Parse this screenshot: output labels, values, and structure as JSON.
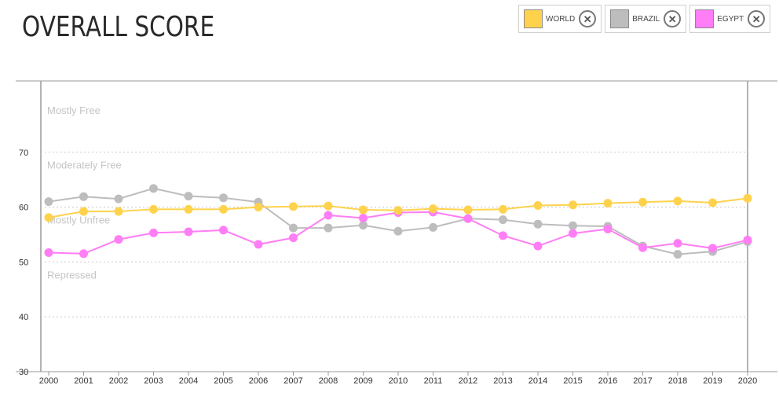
{
  "title": "OVERALL SCORE",
  "legend": [
    {
      "label": "WORLD",
      "color": "#ffd24d",
      "remove_icon": "close-circle-icon"
    },
    {
      "label": "BRAZIL",
      "color": "#bdbdbd",
      "remove_icon": "close-circle-icon"
    },
    {
      "label": "EGYPT",
      "color": "#ff7df5",
      "remove_icon": "close-circle-icon"
    }
  ],
  "chart_data": {
    "type": "line",
    "x": [
      "2000",
      "2001",
      "2002",
      "2003",
      "2004",
      "2005",
      "2006",
      "2007",
      "2008",
      "2009",
      "2010",
      "2011",
      "2012",
      "2013",
      "2014",
      "2015",
      "2016",
      "2017",
      "2018",
      "2019",
      "2020"
    ],
    "ylim": [
      30,
      83
    ],
    "yticks": [
      30,
      40,
      50,
      60,
      70
    ],
    "grid": true,
    "zones": [
      {
        "label": "Mostly Free",
        "y": 80
      },
      {
        "label": "Moderately Free",
        "y": 70
      },
      {
        "label": "Mostly Unfree",
        "y": 60
      },
      {
        "label": "Repressed",
        "y": 50
      }
    ],
    "series": [
      {
        "name": "BRAZIL",
        "color": "#bdbdbd",
        "values": [
          61.0,
          61.9,
          61.5,
          63.4,
          62.0,
          61.7,
          60.9,
          56.2,
          56.2,
          56.7,
          55.6,
          56.3,
          57.9,
          57.7,
          56.9,
          56.6,
          56.5,
          52.9,
          51.4,
          51.9,
          53.7
        ]
      },
      {
        "name": "EGYPT",
        "color": "#ff7df5",
        "values": [
          51.7,
          51.5,
          54.1,
          55.3,
          55.5,
          55.8,
          53.2,
          54.4,
          58.5,
          58.0,
          59.0,
          59.1,
          57.9,
          54.8,
          52.9,
          55.2,
          56.0,
          52.6,
          53.4,
          52.5,
          54.0
        ]
      },
      {
        "name": "WORLD",
        "color": "#ffd24d",
        "values": [
          58.1,
          59.2,
          59.2,
          59.6,
          59.6,
          59.6,
          60.0,
          60.1,
          60.2,
          59.5,
          59.4,
          59.7,
          59.5,
          59.6,
          60.3,
          60.4,
          60.7,
          60.9,
          61.1,
          60.8,
          61.6
        ]
      }
    ]
  }
}
